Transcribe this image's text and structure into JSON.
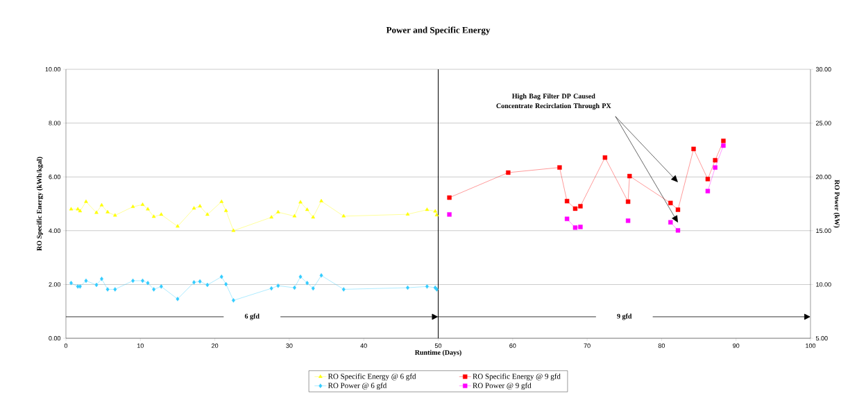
{
  "chart_data": {
    "type": "line",
    "title": "Power and Specific Energy",
    "xlabel": "Runtime (Days)",
    "ylabel": "RO Specific Energy (kWh/kgal)",
    "y2label": "RO Power (kW)",
    "xlim": [
      0,
      100
    ],
    "xticks": [
      0,
      10,
      20,
      30,
      40,
      50,
      60,
      70,
      80,
      90,
      100
    ],
    "ylim": [
      0,
      10
    ],
    "yticks": [
      {
        "value": 0,
        "label": "0.00"
      },
      {
        "value": 2,
        "label": "2.00"
      },
      {
        "value": 4,
        "label": "4.00"
      },
      {
        "value": 6,
        "label": "6.00"
      },
      {
        "value": 8,
        "label": "8.00"
      },
      {
        "value": 10,
        "label": "10.00"
      }
    ],
    "y2lim": [
      5,
      30
    ],
    "y2ticks": [
      {
        "value": 5,
        "label": "5.00"
      },
      {
        "value": 10,
        "label": "10.00"
      },
      {
        "value": 15,
        "label": "15.00"
      },
      {
        "value": 20,
        "label": "20.00"
      },
      {
        "value": 25,
        "label": "25.00"
      },
      {
        "value": 30,
        "label": "30.00"
      }
    ],
    "grid": "y",
    "legend": "bottom",
    "series": [
      {
        "name": "RO Specific Energy @ 6 gfd",
        "color": "#ffff00",
        "marker": "triangle",
        "x": [
          0.7,
          1.6,
          1.9,
          2.7,
          4.1,
          4.8,
          5.6,
          6.6,
          9.0,
          10.3,
          11.0,
          11.8,
          12.8,
          15.0,
          17.2,
          18.0,
          19.0,
          20.9,
          21.5,
          22.5,
          27.6,
          28.5,
          30.7,
          31.5,
          32.4,
          33.2,
          34.3,
          37.3,
          45.9,
          48.5,
          49.6,
          49.8
        ],
        "values": [
          4.8,
          4.8,
          4.73,
          5.08,
          4.67,
          4.95,
          4.69,
          4.57,
          4.89,
          4.97,
          4.8,
          4.52,
          4.6,
          4.16,
          4.83,
          4.91,
          4.6,
          5.08,
          4.74,
          4.0,
          4.5,
          4.69,
          4.54,
          5.06,
          4.78,
          4.5,
          5.1,
          4.54,
          4.61,
          4.78,
          4.72,
          4.58
        ]
      },
      {
        "name": "RO Specific Energy @ 9 gfd",
        "color": "#ff0000",
        "marker": "square",
        "x": [
          51.5,
          59.4,
          66.3,
          67.3,
          68.4,
          69.1,
          72.4,
          75.5,
          75.7,
          81.2,
          82.2,
          84.3,
          86.2,
          87.2,
          88.3
        ],
        "values": [
          5.23,
          6.16,
          6.35,
          5.1,
          4.82,
          4.91,
          6.72,
          5.08,
          6.03,
          5.03,
          4.78,
          7.04,
          5.92,
          6.62,
          7.34
        ]
      },
      {
        "name": "RO Power @ 6 gfd",
        "color": "#33ccff",
        "marker": "diamond",
        "axis": "y2",
        "x": [
          0.7,
          1.6,
          1.9,
          2.7,
          4.1,
          4.8,
          5.6,
          6.6,
          9.0,
          10.3,
          11.0,
          11.8,
          12.8,
          15.0,
          17.2,
          18.0,
          19.0,
          20.9,
          21.5,
          22.5,
          27.6,
          28.5,
          30.7,
          31.5,
          32.4,
          33.2,
          34.3,
          37.3,
          45.9,
          48.5,
          49.6,
          49.8
        ],
        "values": [
          10.14,
          9.81,
          9.81,
          10.35,
          9.96,
          10.52,
          9.55,
          9.55,
          10.35,
          10.35,
          10.14,
          9.55,
          9.81,
          8.65,
          10.2,
          10.28,
          9.96,
          10.72,
          10.03,
          8.52,
          9.64,
          9.88,
          9.7,
          10.72,
          10.14,
          9.64,
          10.84,
          9.55,
          9.7,
          9.81,
          9.7,
          9.55
        ]
      },
      {
        "name": "RO Power @ 9 gfd",
        "color": "#ff00ff",
        "marker": "square",
        "axis": "y2",
        "x": [
          51.5,
          59.4,
          66.3,
          67.3,
          68.4,
          69.1,
          72.4,
          75.5,
          75.7,
          81.2,
          82.2,
          84.3,
          86.2,
          87.2,
          88.3
        ],
        "values": [
          16.51,
          null,
          null,
          16.1,
          15.29,
          15.35,
          null,
          15.93,
          null,
          15.78,
          15.03,
          null,
          18.68,
          20.87,
          22.91
        ]
      }
    ],
    "ref_lines": [
      {
        "axis": "x",
        "value": 50,
        "color": "#000000"
      }
    ],
    "annotations": [
      "High Bag Filter DP Caused Concentrate Recirclation Through PX",
      "6 gfd",
      "9 gfd"
    ]
  }
}
